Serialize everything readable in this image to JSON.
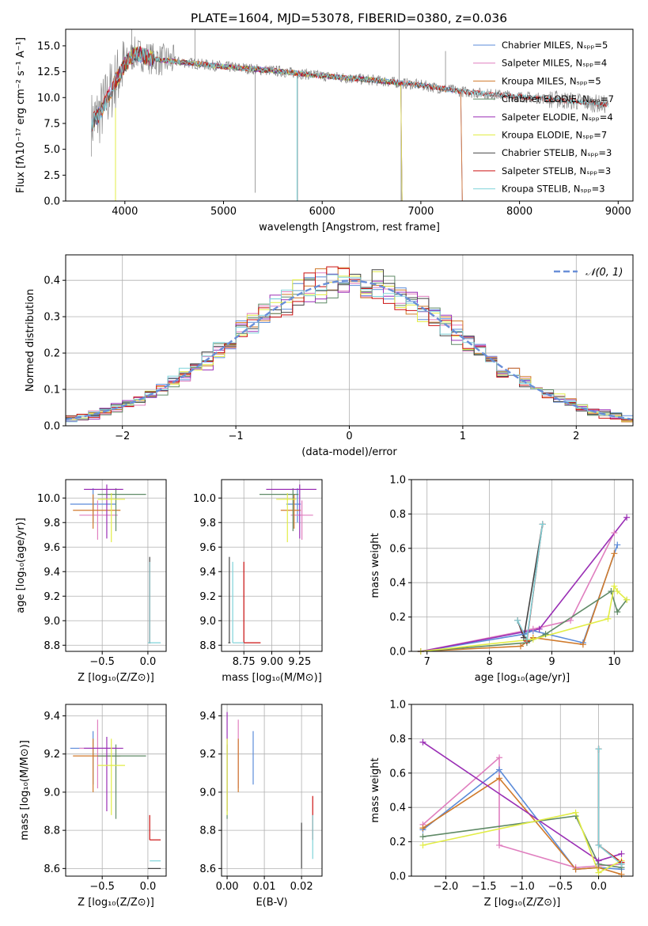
{
  "colors": {
    "chabrier_miles": "#5b8bd9",
    "salpeter_miles": "#e07fbf",
    "kroupa_miles": "#d07a2b",
    "chabrier_elodie": "#5f8a66",
    "salpeter_elodie": "#9a2fb5",
    "kroupa_elodie": "#e2ed46",
    "chabrier_stelib": "#444444",
    "salpeter_stelib": "#cc1111",
    "kroupa_stelib": "#7fd3d9",
    "normal_fit": "#6a8fd8",
    "grid": "#b0b0b0"
  },
  "chart_data": [
    {
      "id": "spectrum",
      "type": "line",
      "title": "PLATE=1604, MJD=53078, FIBERID=0380, z=0.036",
      "xlabel": "wavelength [Angstrom, rest frame]",
      "ylabel": "Flux [fλ10⁻¹⁷ erg cm⁻² s⁻¹ A⁻¹]",
      "xlim": [
        3400,
        9150
      ],
      "ylim": [
        0,
        16.6
      ],
      "xticks": [
        "4000",
        "5000",
        "6000",
        "7000",
        "8000",
        "9000"
      ],
      "yticks": [
        "0.0",
        "2.5",
        "5.0",
        "7.5",
        "10.0",
        "12.5",
        "15.0"
      ],
      "legend_position": "top-right",
      "grid": false,
      "series": [
        {
          "name": "Chabrier MILES, Nₛₚₚ=5",
          "color_key": "chabrier_miles",
          "x_range": [
            3660,
            7410
          ]
        },
        {
          "name": "Salpeter MILES, Nₛₚₚ=4",
          "color_key": "salpeter_miles",
          "x_range": [
            3660,
            7410
          ]
        },
        {
          "name": "Kroupa MILES, Nₛₚₚ=5",
          "color_key": "kroupa_miles",
          "x_range": [
            3660,
            7410
          ]
        },
        {
          "name": "Chabrier ELODIE, Nₛₚₚ=7",
          "color_key": "chabrier_elodie",
          "x_range": [
            3900,
            6800
          ]
        },
        {
          "name": "Salpeter ELODIE, Nₛₚₚ=4",
          "color_key": "salpeter_elodie",
          "x_range": [
            3900,
            6800
          ]
        },
        {
          "name": "Kroupa ELODIE, Nₛₚₚ=7",
          "color_key": "kroupa_elodie",
          "x_range": [
            3900,
            6800
          ]
        },
        {
          "name": "Chabrier STELIB, Nₛₚₚ=3",
          "color_key": "chabrier_stelib",
          "x_range": [
            3660,
            8900
          ]
        },
        {
          "name": "Salpeter STELIB, Nₛₚₚ=3",
          "color_key": "salpeter_stelib",
          "x_range": [
            3660,
            8900
          ]
        },
        {
          "name": "Kroupa STELIB, Nₛₚₚ=3",
          "color_key": "kroupa_stelib",
          "x_range": [
            3660,
            8900
          ]
        }
      ],
      "continuum": {
        "x": [
          3660,
          3750,
          3900,
          4000,
          4100,
          4300,
          4500,
          5000,
          5500,
          6000,
          6500,
          7000,
          7400,
          8000,
          8500,
          8900
        ],
        "y": [
          7.5,
          8.5,
          11.5,
          13.2,
          14.3,
          13.7,
          13.5,
          13.0,
          12.6,
          12.1,
          11.7,
          11.2,
          10.6,
          10.1,
          9.7,
          9.3
        ]
      }
    },
    {
      "id": "residuals",
      "type": "line",
      "xlabel": "(data-model)/error",
      "ylabel": "Normed distribution",
      "xlim": [
        -2.5,
        2.5
      ],
      "ylim": [
        0,
        0.47
      ],
      "xticks": [
        "−2",
        "−1",
        "0",
        "1",
        "2"
      ],
      "yticks": [
        "0.0",
        "0.1",
        "0.2",
        "0.3",
        "0.4"
      ],
      "legend": "𝒩(0, 1)",
      "legend_position": "top-right",
      "grid": true,
      "gaussian": {
        "mean": 0,
        "sigma": 1
      }
    },
    {
      "id": "age_vs_Z",
      "type": "errorbar",
      "xlabel": "Z [log₁₀(Z/Z⊙)]",
      "ylabel": "age  [log₁₀(age/yr)]",
      "xlim": [
        -0.9,
        0.2
      ],
      "ylim": [
        8.75,
        10.15
      ],
      "xticks": [
        "−0.5",
        "0.0"
      ],
      "yticks": [
        "8.8",
        "9.0",
        "9.2",
        "9.4",
        "9.6",
        "9.8",
        "10.0"
      ],
      "grid": true,
      "points": [
        {
          "color_key": "chabrier_miles",
          "x": -0.6,
          "y": 9.95,
          "xerr": [
            0.25,
            0.25
          ],
          "yerr": [
            0.15,
            0.13
          ]
        },
        {
          "color_key": "salpeter_miles",
          "x": -0.55,
          "y": 9.86,
          "xerr": [
            0.2,
            0.22
          ],
          "yerr": [
            0.2,
            0.12
          ]
        },
        {
          "color_key": "kroupa_miles",
          "x": -0.6,
          "y": 9.9,
          "xerr": [
            0.22,
            0.3
          ],
          "yerr": [
            0.15,
            0.13
          ]
        },
        {
          "color_key": "chabrier_elodie",
          "x": -0.35,
          "y": 10.03,
          "xerr": [
            0.2,
            0.33
          ],
          "yerr": [
            0.3,
            0.05
          ]
        },
        {
          "color_key": "salpeter_elodie",
          "x": -0.45,
          "y": 10.07,
          "xerr": [
            0.25,
            0.18
          ],
          "yerr": [
            0.4,
            0.04
          ]
        },
        {
          "color_key": "kroupa_elodie",
          "x": -0.4,
          "y": 9.99,
          "xerr": [
            0.15,
            0.15
          ],
          "yerr": [
            0.35,
            0.05
          ]
        },
        {
          "color_key": "chabrier_stelib",
          "x": 0.02,
          "y": 8.82,
          "xerr": [
            0.01,
            0.01
          ],
          "yerr": [
            0.0,
            0.7
          ]
        },
        {
          "color_key": "salpeter_stelib",
          "x": 0.02,
          "y": 8.82,
          "xerr": [
            0.01,
            0.01
          ],
          "yerr": [
            0.0,
            0.66
          ]
        },
        {
          "color_key": "kroupa_stelib",
          "x": 0.02,
          "y": 8.82,
          "xerr": [
            0.02,
            0.12
          ],
          "yerr": [
            0.0,
            0.66
          ]
        }
      ]
    },
    {
      "id": "age_vs_mass",
      "type": "errorbar",
      "xlabel": "mass [log₁₀(M/M⊙)]",
      "ylabel": "",
      "xlim": [
        8.55,
        9.45
      ],
      "ylim": [
        8.75,
        10.15
      ],
      "xticks": [
        "8.75",
        "9.00",
        "9.25"
      ],
      "yticks": [
        "8.8",
        "9.0",
        "9.2",
        "9.4",
        "9.6",
        "9.8",
        "10.0"
      ],
      "grid": true,
      "points": [
        {
          "color_key": "chabrier_miles",
          "x": 9.23,
          "y": 9.95,
          "xerr": [
            0.1,
            0.03
          ],
          "yerr": [
            0.15,
            0.13
          ]
        },
        {
          "color_key": "salpeter_miles",
          "x": 9.27,
          "y": 9.86,
          "xerr": [
            0.1,
            0.1
          ],
          "yerr": [
            0.2,
            0.12
          ]
        },
        {
          "color_key": "kroupa_miles",
          "x": 9.2,
          "y": 9.9,
          "xerr": [
            0.12,
            0.06
          ],
          "yerr": [
            0.15,
            0.13
          ]
        },
        {
          "color_key": "chabrier_elodie",
          "x": 9.19,
          "y": 10.03,
          "xerr": [
            0.3,
            0.05
          ],
          "yerr": [
            0.3,
            0.05
          ]
        },
        {
          "color_key": "salpeter_elodie",
          "x": 9.25,
          "y": 10.07,
          "xerr": [
            0.3,
            0.15
          ],
          "yerr": [
            0.4,
            0.04
          ]
        },
        {
          "color_key": "kroupa_elodie",
          "x": 9.14,
          "y": 9.99,
          "xerr": [
            0.1,
            0.08
          ],
          "yerr": [
            0.35,
            0.05
          ]
        },
        {
          "color_key": "chabrier_stelib",
          "x": 8.62,
          "y": 8.82,
          "xerr": [
            0.01,
            0.01
          ],
          "yerr": [
            0.0,
            0.7
          ]
        },
        {
          "color_key": "salpeter_stelib",
          "x": 8.75,
          "y": 8.82,
          "xerr": [
            0.0,
            0.15
          ],
          "yerr": [
            0.0,
            0.66
          ]
        },
        {
          "color_key": "kroupa_stelib",
          "x": 8.65,
          "y": 8.82,
          "xerr": [
            0.0,
            0.1
          ],
          "yerr": [
            0.0,
            0.66
          ]
        }
      ]
    },
    {
      "id": "weight_vs_age",
      "type": "line",
      "xlabel": "age  [log₁₀(age/yr)]",
      "ylabel": "mass weight",
      "xlim": [
        6.75,
        10.3
      ],
      "ylim": [
        0,
        1.0
      ],
      "xticks": [
        "7",
        "8",
        "9",
        "10"
      ],
      "yticks": [
        "0.0",
        "0.2",
        "0.4",
        "0.6",
        "0.8",
        "1.0"
      ],
      "grid": true,
      "series": [
        {
          "color_key": "chabrier_miles",
          "x": [
            6.9,
            8.55,
            8.7,
            9.5,
            10.05
          ],
          "y": [
            0.0,
            0.1,
            0.12,
            0.05,
            0.62
          ]
        },
        {
          "color_key": "salpeter_miles",
          "x": [
            6.9,
            8.7,
            9.3,
            10.0
          ],
          "y": [
            0.0,
            0.13,
            0.18,
            0.69
          ]
        },
        {
          "color_key": "kroupa_miles",
          "x": [
            6.9,
            8.5,
            8.7,
            9.5,
            10.0
          ],
          "y": [
            0.0,
            0.03,
            0.08,
            0.04,
            0.57
          ]
        },
        {
          "color_key": "chabrier_elodie",
          "x": [
            6.9,
            8.6,
            8.9,
            9.95,
            10.05,
            10.2
          ],
          "y": [
            0.0,
            0.05,
            0.1,
            0.35,
            0.23,
            0.3
          ]
        },
        {
          "color_key": "salpeter_elodie",
          "x": [
            6.9,
            8.8,
            10.2
          ],
          "y": [
            0.0,
            0.13,
            0.78
          ]
        },
        {
          "color_key": "kroupa_elodie",
          "x": [
            6.9,
            8.7,
            9.9,
            10.0,
            10.05,
            10.2
          ],
          "y": [
            0.0,
            0.07,
            0.19,
            0.38,
            0.35,
            0.3
          ]
        },
        {
          "color_key": "chabrier_stelib",
          "x": [
            8.45,
            8.55,
            8.85
          ],
          "y": [
            0.18,
            0.08,
            0.74
          ]
        },
        {
          "color_key": "salpeter_stelib",
          "x": [
            8.45,
            8.6,
            8.85
          ],
          "y": [
            0.18,
            0.06,
            0.74
          ]
        },
        {
          "color_key": "kroupa_stelib",
          "x": [
            8.45,
            8.6,
            8.85
          ],
          "y": [
            0.18,
            0.07,
            0.74
          ]
        }
      ]
    },
    {
      "id": "mass_vs_Z",
      "type": "errorbar",
      "xlabel": "Z [log₁₀(Z/Z⊙)]",
      "ylabel": "mass [log₁₀(M/M⊙)]",
      "xlim": [
        -0.9,
        0.2
      ],
      "ylim": [
        8.56,
        9.46
      ],
      "xticks": [
        "−0.5",
        "0.0"
      ],
      "yticks": [
        "8.6",
        "8.8",
        "9.0",
        "9.2",
        "9.4"
      ],
      "grid": true,
      "points": [
        {
          "color_key": "chabrier_miles",
          "x": -0.6,
          "y": 9.23,
          "xerr": [
            0.25,
            0.25
          ],
          "yerr": [
            0.19,
            0.09
          ]
        },
        {
          "color_key": "salpeter_miles",
          "x": -0.55,
          "y": 9.23,
          "xerr": [
            0.2,
            0.22
          ],
          "yerr": [
            0.21,
            0.15
          ]
        },
        {
          "color_key": "kroupa_miles",
          "x": -0.6,
          "y": 9.19,
          "xerr": [
            0.22,
            0.3
          ],
          "yerr": [
            0.19,
            0.09
          ]
        },
        {
          "color_key": "chabrier_elodie",
          "x": -0.35,
          "y": 9.19,
          "xerr": [
            0.2,
            0.33
          ],
          "yerr": [
            0.33,
            0.06
          ]
        },
        {
          "color_key": "salpeter_elodie",
          "x": -0.45,
          "y": 9.23,
          "xerr": [
            0.25,
            0.18
          ],
          "yerr": [
            0.33,
            0.06
          ]
        },
        {
          "color_key": "kroupa_elodie",
          "x": -0.4,
          "y": 9.14,
          "xerr": [
            0.15,
            0.15
          ],
          "yerr": [
            0.26,
            0.14
          ]
        },
        {
          "color_key": "chabrier_stelib",
          "x": 0.02,
          "y": 8.6,
          "xerr": [
            0.02,
            0.12
          ],
          "yerr": [
            0.0,
            0.0
          ]
        },
        {
          "color_key": "salpeter_stelib",
          "x": 0.02,
          "y": 8.75,
          "xerr": [
            0.0,
            0.12
          ],
          "yerr": [
            0.0,
            0.13
          ]
        },
        {
          "color_key": "kroupa_stelib",
          "x": 0.02,
          "y": 8.64,
          "xerr": [
            0.0,
            0.12
          ],
          "yerr": [
            0.0,
            0.0
          ]
        }
      ]
    },
    {
      "id": "mass_vs_ebv",
      "type": "errorbar",
      "xlabel": "E(B-V)",
      "ylabel": "",
      "xlim": [
        -0.0015,
        0.0255
      ],
      "ylim": [
        8.56,
        9.46
      ],
      "xticks": [
        "0.00",
        "0.01",
        "0.02"
      ],
      "yticks": [
        "8.6",
        "8.8",
        "9.0",
        "9.2",
        "9.4"
      ],
      "grid": true,
      "points": [
        {
          "color_key": "chabrier_miles",
          "x": 0.007,
          "y": 9.23,
          "xerr": [
            0,
            0
          ],
          "yerr": [
            0.19,
            0.09
          ]
        },
        {
          "color_key": "salpeter_miles",
          "x": 0.003,
          "y": 9.23,
          "xerr": [
            0,
            0
          ],
          "yerr": [
            0.21,
            0.15
          ]
        },
        {
          "color_key": "kroupa_miles",
          "x": 0.003,
          "y": 9.19,
          "xerr": [
            0,
            0
          ],
          "yerr": [
            0.19,
            0.09
          ]
        },
        {
          "color_key": "chabrier_elodie",
          "x": 0.0,
          "y": 9.19,
          "xerr": [
            0,
            0
          ],
          "yerr": [
            0.33,
            0.06
          ]
        },
        {
          "color_key": "salpeter_elodie",
          "x": 0.0,
          "y": 9.23,
          "xerr": [
            0,
            0
          ],
          "yerr": [
            0.33,
            0.19
          ]
        },
        {
          "color_key": "kroupa_elodie",
          "x": 0.0,
          "y": 9.14,
          "xerr": [
            0,
            0
          ],
          "yerr": [
            0.26,
            0.14
          ]
        },
        {
          "color_key": "chabrier_stelib",
          "x": 0.02,
          "y": 8.6,
          "xerr": [
            0,
            0
          ],
          "yerr": [
            0.0,
            0.24
          ]
        },
        {
          "color_key": "salpeter_stelib",
          "x": 0.023,
          "y": 8.85,
          "xerr": [
            0,
            0
          ],
          "yerr": [
            0.1,
            0.13
          ]
        },
        {
          "color_key": "kroupa_stelib",
          "x": 0.023,
          "y": 8.75,
          "xerr": [
            0,
            0
          ],
          "yerr": [
            0.1,
            0.13
          ]
        }
      ]
    },
    {
      "id": "weight_vs_Z",
      "type": "line",
      "xlabel": "Z [log₁₀(Z/Z⊙)]",
      "ylabel": "mass weight",
      "xlim": [
        -2.45,
        0.45
      ],
      "ylim": [
        0,
        1.0
      ],
      "xticks": [
        "−2.0",
        "−1.5",
        "−1.0",
        "−0.5",
        "0.0"
      ],
      "yticks": [
        "0.0",
        "0.2",
        "0.4",
        "0.6",
        "0.8",
        "1.0"
      ],
      "grid": true,
      "series": [
        {
          "color_key": "chabrier_miles",
          "x": [
            -2.3,
            -1.3,
            -0.3,
            0.0,
            0.3
          ],
          "y": [
            0.27,
            0.62,
            0.04,
            0.05,
            0.04
          ]
        },
        {
          "color_key": "salpeter_miles",
          "x": [
            -2.3,
            -1.3,
            -1.3,
            -0.3,
            0.3
          ],
          "y": [
            0.3,
            0.69,
            0.18,
            0.05,
            0.07
          ]
        },
        {
          "color_key": "kroupa_miles",
          "x": [
            -2.3,
            -1.3,
            -0.3,
            0.0,
            0.3
          ],
          "y": [
            0.28,
            0.57,
            0.04,
            0.05,
            0.01
          ]
        },
        {
          "color_key": "chabrier_elodie",
          "x": [
            -2.3,
            -0.3,
            0.0,
            0.3
          ],
          "y": [
            0.23,
            0.35,
            0.07,
            0.05
          ]
        },
        {
          "color_key": "salpeter_elodie",
          "x": [
            -2.3,
            0.0,
            0.3
          ],
          "y": [
            0.78,
            0.09,
            0.13
          ]
        },
        {
          "color_key": "kroupa_elodie",
          "x": [
            -2.3,
            -0.3,
            0.0,
            0.3
          ],
          "y": [
            0.18,
            0.37,
            0.02,
            0.09
          ]
        },
        {
          "color_key": "chabrier_stelib",
          "x": [
            0.0,
            0.0,
            0.3
          ],
          "y": [
            0.74,
            0.18,
            0.07
          ]
        },
        {
          "color_key": "salpeter_stelib",
          "x": [
            0.0,
            0.0,
            0.3
          ],
          "y": [
            0.74,
            0.18,
            0.08
          ]
        },
        {
          "color_key": "kroupa_stelib",
          "x": [
            0.0,
            0.0,
            0.3
          ],
          "y": [
            0.74,
            0.18,
            0.07
          ]
        }
      ]
    }
  ]
}
